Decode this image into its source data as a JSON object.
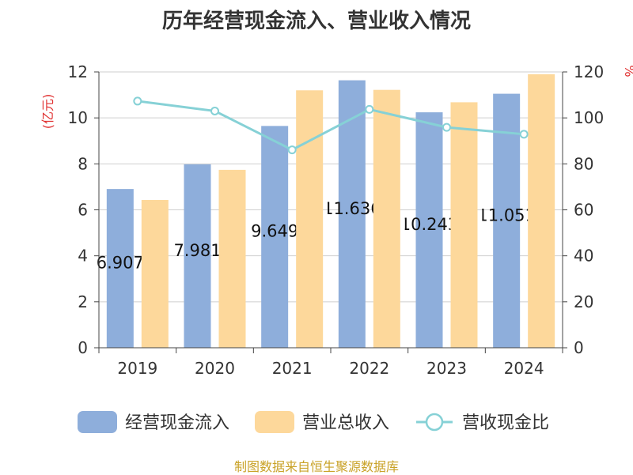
{
  "chart_data": {
    "type": "bar",
    "title": "历年经营现金流入、营业收入情况",
    "categories": [
      "2019",
      "2020",
      "2021",
      "2022",
      "2023",
      "2024"
    ],
    "series": [
      {
        "name": "经营现金流入",
        "type": "bar",
        "axis": "left",
        "values": [
          6.907,
          7.981,
          9.649,
          11.636,
          10.243,
          11.051
        ],
        "labels": [
          "6.907",
          "7.981",
          "9.649",
          "11.636",
          "10.243",
          "11.051"
        ],
        "color": "#8eaedb"
      },
      {
        "name": "营业总收入",
        "type": "bar",
        "axis": "left",
        "values": [
          6.43,
          7.74,
          11.2,
          11.22,
          10.68,
          11.9
        ],
        "color": "#fdd89b"
      },
      {
        "name": "营收现金比",
        "type": "line",
        "axis": "right",
        "values": [
          107.3,
          103.0,
          86.1,
          103.7,
          95.9,
          92.9
        ],
        "color": "#86d1d6"
      }
    ],
    "y_left": {
      "label": "(亿元)",
      "min": 0,
      "max": 12,
      "ticks": [
        0,
        2,
        4,
        6,
        8,
        10,
        12
      ]
    },
    "y_right": {
      "label": "%",
      "min": 0,
      "max": 120,
      "ticks": [
        0,
        20,
        40,
        60,
        80,
        100,
        120
      ]
    },
    "grid": true,
    "legend": "bottom-center",
    "source": "制图数据来自恒生聚源数据库"
  }
}
